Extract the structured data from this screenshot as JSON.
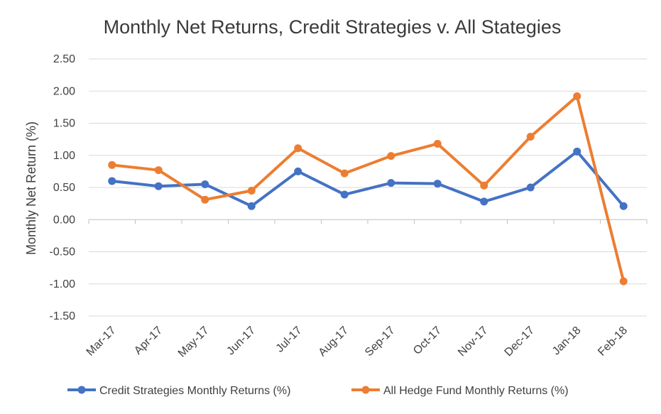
{
  "chart_data": {
    "type": "line",
    "title": "Monthly Net Returns, Credit Strategies v. All Stategies",
    "xlabel": "",
    "ylabel": "Monthly Net Return (%)",
    "ylim": [
      -1.5,
      2.5
    ],
    "y_ticks": [
      "2.50",
      "2.00",
      "1.50",
      "1.00",
      "0.50",
      "0.00",
      "-0.50",
      "-1.00",
      "-1.50"
    ],
    "categories": [
      "Mar-17",
      "Apr-17",
      "May-17",
      "Jun-17",
      "Jul-17",
      "Aug-17",
      "Sep-17",
      "Oct-17",
      "Nov-17",
      "Dec-17",
      "Jan-18",
      "Feb-18"
    ],
    "grid": true,
    "legend_position": "bottom",
    "series": [
      {
        "name": "Credit Strategies Monthly Returns (%)",
        "color": "#4472c4",
        "values": [
          0.6,
          0.52,
          0.55,
          0.21,
          0.75,
          0.39,
          0.57,
          0.56,
          0.28,
          0.5,
          1.06,
          0.21
        ]
      },
      {
        "name": "All Hedge Fund Monthly Returns (%)",
        "color": "#ed7d31",
        "values": [
          0.85,
          0.77,
          0.31,
          0.45,
          1.11,
          0.72,
          0.99,
          1.18,
          0.53,
          1.29,
          1.92,
          -0.96
        ]
      }
    ]
  }
}
